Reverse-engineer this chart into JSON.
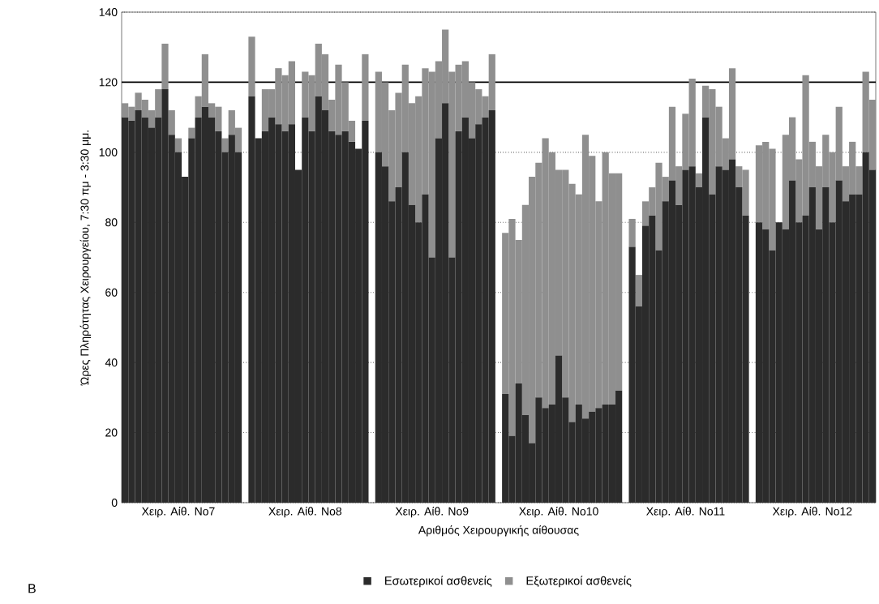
{
  "chart_data": {
    "type": "bar",
    "stacked": true,
    "ylabel": "Ώρες Πληρότητας Χειρουργείου, 7:30 πμ - 3:30 μμ.",
    "xlabel": "Αριθμός Χειρουργικής αίθουσας",
    "annotations": [
      "B"
    ],
    "categories": [
      null,
      null,
      null,
      null,
      null,
      null,
      null,
      null,
      "Χειρ. Αίθ. No7",
      null,
      null,
      null,
      null,
      null,
      null,
      null,
      null,
      null,
      null,
      null,
      null,
      null,
      null,
      null,
      null,
      null,
      null,
      "Χειρ. Αίθ. No8",
      null,
      null,
      null,
      null,
      null,
      null,
      null,
      null,
      null,
      null,
      null,
      null,
      null,
      null,
      null,
      null,
      null,
      null,
      "Χειρ. Αίθ. No9",
      null,
      null,
      null,
      null,
      null,
      null,
      null,
      null,
      null,
      null,
      null,
      null,
      null,
      null,
      null,
      null,
      null,
      null,
      "Χειρ. Αίθ. No10",
      null,
      null,
      null,
      null,
      null,
      null,
      null,
      null,
      null,
      null,
      null,
      null,
      null,
      null,
      null,
      null,
      null,
      null,
      "Χειρ. Αίθ. No11",
      null,
      null,
      null,
      null,
      null,
      null,
      null,
      null,
      null,
      null,
      null,
      null,
      null,
      null,
      null,
      null,
      null,
      null,
      "Χειρ. Αίθ. No12",
      null,
      null,
      null,
      null,
      null,
      null,
      null,
      null,
      null
    ],
    "series": [
      {
        "name": "Εσωτερικοί ασθενείς",
        "color": "#2b2b2b",
        "values": [
          110,
          109,
          112,
          110,
          107,
          110,
          118,
          105,
          100,
          93,
          104,
          110,
          113,
          110,
          106,
          100,
          105,
          100,
          null,
          116,
          104,
          106,
          110,
          108,
          106,
          108,
          95,
          110,
          106,
          116,
          112,
          106,
          105,
          106,
          103,
          101,
          109,
          null,
          100,
          96,
          86,
          90,
          100,
          85,
          80,
          88,
          70,
          104,
          114,
          70,
          106,
          110,
          104,
          108,
          110,
          112,
          null,
          31,
          19,
          34,
          25,
          17,
          30,
          27,
          28,
          42,
          30,
          23,
          28,
          24,
          26,
          27,
          28,
          28,
          32,
          null,
          73,
          56,
          79,
          82,
          72,
          86,
          92,
          85,
          95,
          96,
          90,
          110,
          88,
          96,
          95,
          98,
          90,
          82,
          null,
          80,
          78,
          72,
          80,
          78,
          92,
          80,
          82,
          90,
          78,
          90,
          80,
          92,
          86,
          88,
          88,
          100,
          95
        ]
      },
      {
        "name": "Εξωτερικοί ασθενείς",
        "color": "#8f8f8f",
        "values": [
          4,
          4,
          5,
          5,
          5,
          8,
          13,
          7,
          4,
          0,
          3,
          6,
          15,
          4,
          7,
          4,
          7,
          7,
          null,
          17,
          0,
          12,
          8,
          16,
          16,
          18,
          0,
          13,
          16,
          15,
          16,
          9,
          20,
          14,
          6,
          0,
          19,
          null,
          23,
          24,
          26,
          27,
          25,
          29,
          36,
          36,
          53,
          22,
          21,
          53,
          19,
          16,
          16,
          10,
          6,
          16,
          null,
          46,
          62,
          41,
          60,
          76,
          67,
          77,
          72,
          53,
          65,
          68,
          60,
          81,
          73,
          59,
          72,
          66,
          62,
          null,
          8,
          9,
          7,
          8,
          25,
          7,
          21,
          11,
          16,
          25,
          4,
          9,
          30,
          17,
          9,
          26,
          6,
          13,
          null,
          22,
          25,
          29,
          0,
          27,
          18,
          18,
          40,
          13,
          18,
          15,
          20,
          21,
          10,
          15,
          8,
          23,
          20
        ]
      }
    ],
    "ylim": [
      0,
      140
    ],
    "yticks": [
      0,
      20,
      40,
      60,
      80,
      100,
      120,
      140
    ],
    "grid": "y",
    "legend": "bottom",
    "ref_lines": [
      {
        "axis": "y",
        "value": 120,
        "color": "#000000"
      }
    ]
  }
}
